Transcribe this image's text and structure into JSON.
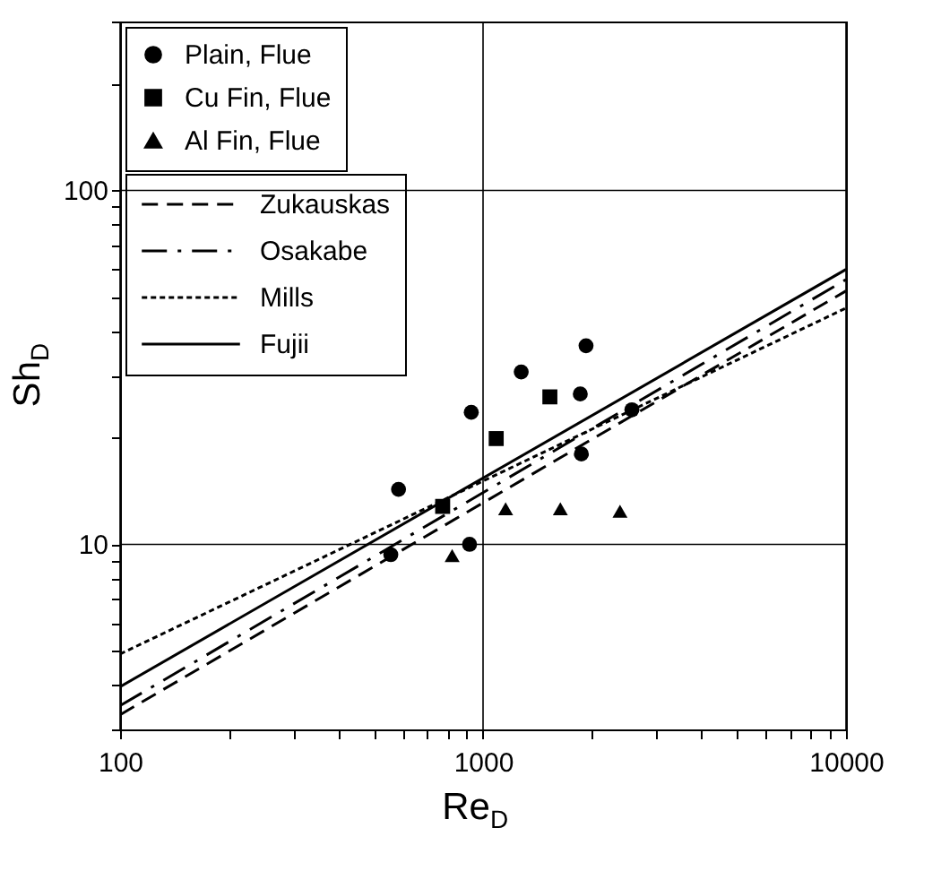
{
  "chart_data": {
    "type": "scatter",
    "xlabel": "Re$_{D}$",
    "ylabel": "Sh$_{D}$",
    "log": "xy",
    "xlim": [
      100,
      10000
    ],
    "ylim": [
      3,
      300
    ],
    "xticks": [
      100,
      {
        "value": 200,
        "label": null
      },
      {
        "value": 300,
        "label": null
      },
      {
        "value": 400,
        "label": null
      },
      {
        "value": 500,
        "label": null
      },
      {
        "value": 600,
        "label": null
      },
      {
        "value": 700,
        "label": null
      },
      {
        "value": 800,
        "label": null
      },
      {
        "value": 900,
        "label": null
      },
      1000,
      {
        "value": 2000,
        "label": null
      },
      {
        "value": 3000,
        "label": null
      },
      {
        "value": 4000,
        "label": null
      },
      {
        "value": 5000,
        "label": null
      },
      {
        "value": 6000,
        "label": null
      },
      {
        "value": 7000,
        "label": null
      },
      {
        "value": 8000,
        "label": null
      },
      {
        "value": 9000,
        "label": null
      },
      10000
    ],
    "yticks": [
      {
        "value": 3,
        "label": null
      },
      {
        "value": 4,
        "label": null
      },
      {
        "value": 5,
        "label": null
      },
      {
        "value": 6,
        "label": null
      },
      {
        "value": 7,
        "label": null
      },
      {
        "value": 8,
        "label": null
      },
      {
        "value": 9,
        "label": null
      },
      10,
      {
        "value": 20,
        "label": null
      },
      {
        "value": 30,
        "label": null
      },
      {
        "value": 40,
        "label": null
      },
      {
        "value": 50,
        "label": null
      },
      {
        "value": 60,
        "label": null
      },
      {
        "value": 70,
        "label": null
      },
      {
        "value": 80,
        "label": null
      },
      {
        "value": 90,
        "label": null
      },
      100,
      {
        "value": 200,
        "label": null
      },
      {
        "value": 300,
        "label": null
      }
    ],
    "grid": true,
    "legend": "top left",
    "series": [
      {
        "name": "Plain, Flue",
        "marker": "circle",
        "color": "#000000",
        "x": [
          557,
          585,
          928,
          918,
          1274,
          1922,
          1853,
          1866,
          2571
        ],
        "values": [
          9.35,
          14.3,
          23.6,
          10.0,
          30.7,
          36.4,
          26.6,
          18.0,
          24.0
        ]
      },
      {
        "name": "Cu Fin, Flue",
        "marker": "square",
        "color": "#000000",
        "x": [
          1528,
          1087,
          774
        ],
        "values": [
          26.1,
          19.9,
          12.8
        ]
      },
      {
        "name": "Al Fin, Flue",
        "marker": "triangle",
        "color": "#000000",
        "x": [
          822,
          1154,
          1633,
          2384
        ],
        "values": [
          9.3,
          12.6,
          12.6,
          12.4
        ]
      },
      {
        "name": "Zukauskas",
        "type": "line",
        "line_style": "dashed",
        "color": "#000000",
        "x": [
          100,
          10000
        ],
        "values": [
          3.3,
          52
        ]
      },
      {
        "name": "Osakabe",
        "type": "line",
        "line_style": "dashdot",
        "color": "#000000",
        "x": [
          100,
          10000
        ],
        "values": [
          3.5,
          56
        ]
      },
      {
        "name": "Mills",
        "type": "line",
        "line_style": "dotted",
        "color": "#000000",
        "x": [
          100,
          10000
        ],
        "values": [
          4.9,
          46.5
        ]
      },
      {
        "name": "Fujii",
        "type": "line",
        "line_style": "solid",
        "color": "#000000",
        "x": [
          100,
          10000
        ],
        "values": [
          3.96,
          59.8
        ]
      }
    ]
  }
}
